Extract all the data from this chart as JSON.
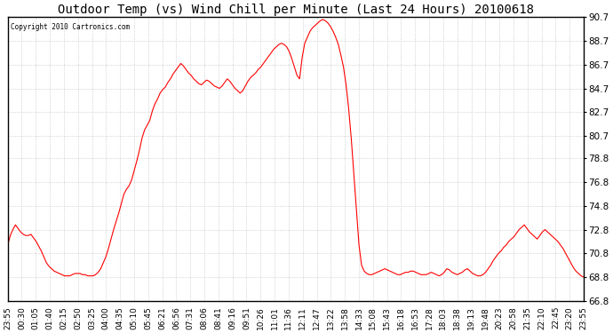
{
  "title": "Outdoor Temp (vs) Wind Chill per Minute (Last 24 Hours) 20100618",
  "copyright": "Copyright 2010 Cartronics.com",
  "line_color": "#ff0000",
  "background_color": "#ffffff",
  "grid_color": "#888888",
  "ymin": 66.8,
  "ymax": 90.7,
  "yticks": [
    66.8,
    68.8,
    70.8,
    72.8,
    74.8,
    76.8,
    78.8,
    80.7,
    82.7,
    84.7,
    86.7,
    88.7,
    90.7
  ],
  "xlabel_fontsize": 6.5,
  "ylabel_fontsize": 7.5,
  "title_fontsize": 10,
  "xtick_labels": [
    "23:55",
    "00:30",
    "01:05",
    "01:40",
    "02:15",
    "02:50",
    "03:25",
    "04:00",
    "04:35",
    "05:10",
    "05:45",
    "06:21",
    "06:56",
    "07:31",
    "08:06",
    "08:41",
    "09:16",
    "09:51",
    "10:26",
    "11:01",
    "11:36",
    "12:11",
    "12:47",
    "13:22",
    "13:58",
    "14:33",
    "15:08",
    "15:43",
    "16:18",
    "16:53",
    "17:28",
    "18:03",
    "18:38",
    "19:13",
    "19:48",
    "20:23",
    "20:58",
    "21:35",
    "22:10",
    "22:45",
    "23:20",
    "23:55"
  ],
  "y_data": [
    71.5,
    72.3,
    72.8,
    73.2,
    72.9,
    72.6,
    72.4,
    72.3,
    72.3,
    72.4,
    72.1,
    71.8,
    71.4,
    71.0,
    70.5,
    70.0,
    69.7,
    69.5,
    69.3,
    69.2,
    69.1,
    69.0,
    68.9,
    68.9,
    68.9,
    69.0,
    69.1,
    69.1,
    69.1,
    69.0,
    69.0,
    68.9,
    68.9,
    68.9,
    69.0,
    69.2,
    69.5,
    70.0,
    70.5,
    71.2,
    72.0,
    72.8,
    73.5,
    74.2,
    75.0,
    75.8,
    76.2,
    76.5,
    77.0,
    77.8,
    78.6,
    79.5,
    80.5,
    81.2,
    81.6,
    82.0,
    82.8,
    83.4,
    83.8,
    84.3,
    84.6,
    84.8,
    85.2,
    85.5,
    85.9,
    86.2,
    86.5,
    86.8,
    86.6,
    86.3,
    86.0,
    85.8,
    85.5,
    85.3,
    85.1,
    85.0,
    85.2,
    85.4,
    85.3,
    85.1,
    84.9,
    84.8,
    84.7,
    84.9,
    85.2,
    85.5,
    85.3,
    85.0,
    84.7,
    84.5,
    84.3,
    84.5,
    84.9,
    85.3,
    85.6,
    85.8,
    86.0,
    86.3,
    86.5,
    86.8,
    87.1,
    87.4,
    87.7,
    88.0,
    88.2,
    88.4,
    88.5,
    88.4,
    88.2,
    87.8,
    87.2,
    86.5,
    85.8,
    85.5,
    87.3,
    88.5,
    89.0,
    89.5,
    89.8,
    90.0,
    90.2,
    90.4,
    90.5,
    90.4,
    90.2,
    89.9,
    89.5,
    89.0,
    88.4,
    87.5,
    86.5,
    85.0,
    83.0,
    80.5,
    77.5,
    74.5,
    71.5,
    69.8,
    69.3,
    69.1,
    69.0,
    69.0,
    69.1,
    69.2,
    69.3,
    69.4,
    69.5,
    69.4,
    69.3,
    69.2,
    69.1,
    69.0,
    69.0,
    69.1,
    69.2,
    69.2,
    69.3,
    69.3,
    69.2,
    69.1,
    69.0,
    69.0,
    69.0,
    69.1,
    69.2,
    69.1,
    69.0,
    68.9,
    69.0,
    69.2,
    69.5,
    69.4,
    69.2,
    69.1,
    69.0,
    69.1,
    69.2,
    69.4,
    69.5,
    69.3,
    69.1,
    69.0,
    68.9,
    68.9,
    69.0,
    69.2,
    69.5,
    69.8,
    70.2,
    70.5,
    70.8,
    71.0,
    71.3,
    71.5,
    71.8,
    72.0,
    72.2,
    72.5,
    72.8,
    73.0,
    73.2,
    72.9,
    72.6,
    72.4,
    72.2,
    72.0,
    72.3,
    72.6,
    72.8,
    72.6,
    72.4,
    72.2,
    72.0,
    71.8,
    71.5,
    71.2,
    70.8,
    70.4,
    70.0,
    69.6,
    69.3,
    69.1,
    68.9,
    68.8
  ]
}
